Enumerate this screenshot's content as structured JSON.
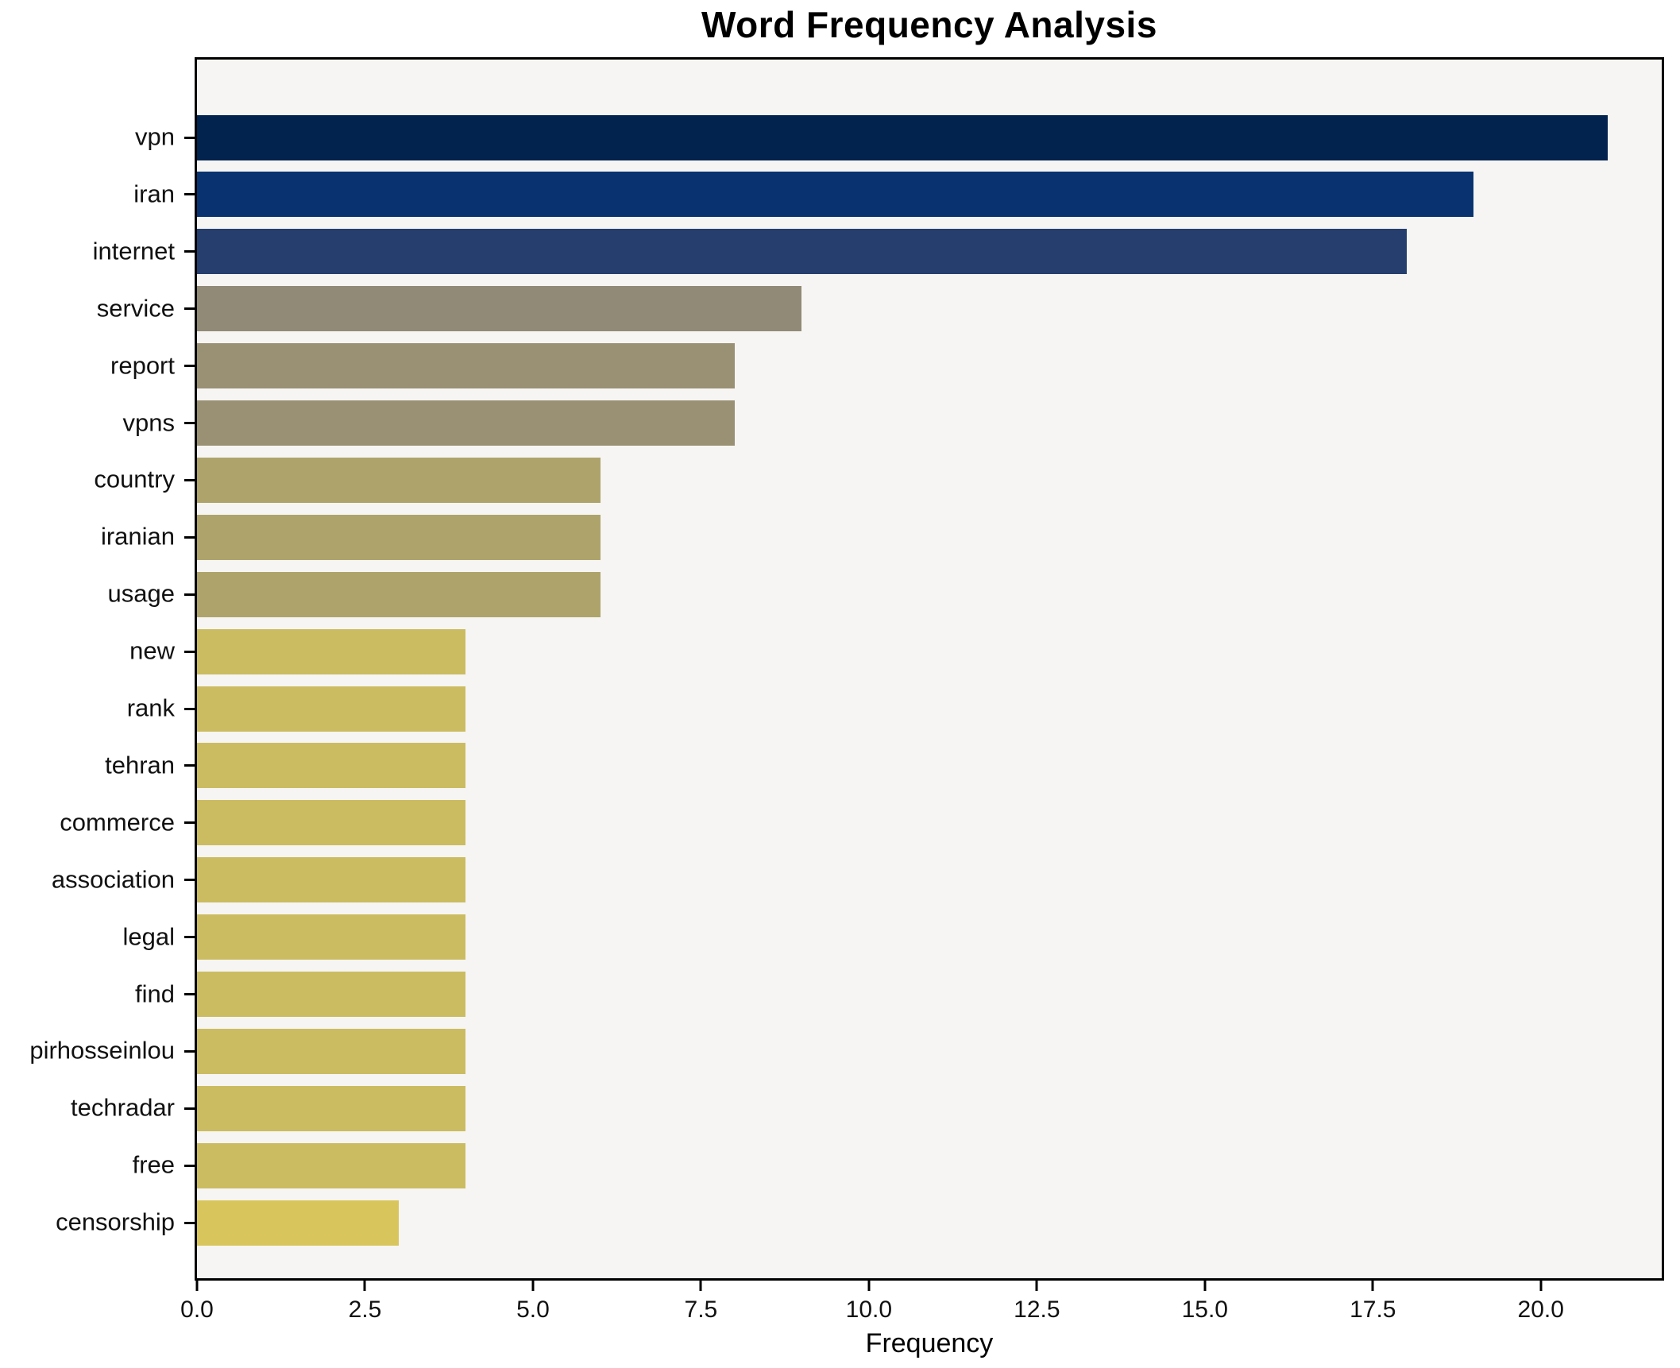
{
  "chart_data": {
    "type": "bar",
    "orientation": "horizontal",
    "title": "Word Frequency Analysis",
    "xlabel": "Frequency",
    "ylabel": "",
    "categories": [
      "vpn",
      "iran",
      "internet",
      "service",
      "report",
      "vpns",
      "country",
      "iranian",
      "usage",
      "new",
      "rank",
      "tehran",
      "commerce",
      "association",
      "legal",
      "find",
      "pirhosseinlou",
      "techradar",
      "free",
      "censorship"
    ],
    "values": [
      21,
      19,
      18,
      9,
      8,
      8,
      6,
      6,
      6,
      4,
      4,
      4,
      4,
      4,
      4,
      4,
      4,
      4,
      4,
      3
    ],
    "bar_colors": [
      "#01234e",
      "#083370",
      "#253e6e",
      "#918a77",
      "#9a9174",
      "#9a9174",
      "#aea46b",
      "#aea46b",
      "#aea46b",
      "#cbbc62",
      "#cbbc62",
      "#cbbc62",
      "#cbbc62",
      "#cbbc62",
      "#cbbc62",
      "#cbbc62",
      "#cbbc62",
      "#cbbc62",
      "#cbbc62",
      "#d8c65c"
    ],
    "xlim": [
      0,
      21.8
    ],
    "x_tick_values": [
      0,
      2.5,
      5,
      7.5,
      10,
      12.5,
      15,
      17.5,
      20
    ],
    "x_tick_labels": [
      "0.0",
      "2.5",
      "5.0",
      "7.5",
      "10.0",
      "12.5",
      "15.0",
      "17.5",
      "20.0"
    ],
    "grid": false,
    "legend": false,
    "colormap_note": "cividis-style: high values dark navy, low values yellow",
    "plot_background": "#f6f5f3",
    "figure_background": "#ffffff",
    "spine_color": "#000000",
    "text_color": "#111111"
  }
}
